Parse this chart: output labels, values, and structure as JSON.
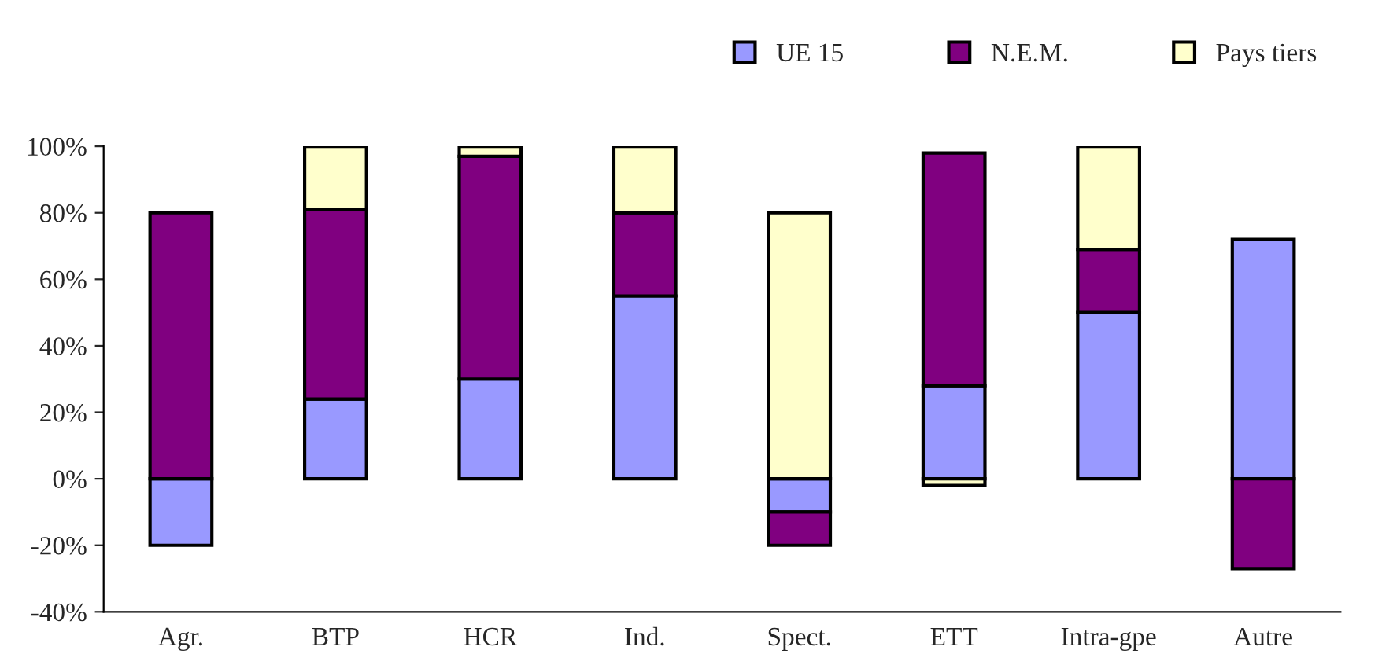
{
  "chart_data": {
    "type": "bar",
    "stacked": true,
    "categories": [
      "Agr.",
      "BTP",
      "HCR",
      "Ind.",
      "Spect.",
      "ETT",
      "Intra-gpe",
      "Autre"
    ],
    "series": [
      {
        "name": "UE 15",
        "color": "#9999ff",
        "values": [
          -20,
          24,
          30,
          55,
          -10,
          28,
          50,
          72
        ]
      },
      {
        "name": "N.E.M.",
        "color": "#800080",
        "values": [
          80,
          57,
          67,
          25,
          -10,
          70,
          19,
          -27
        ]
      },
      {
        "name": "Pays tiers",
        "color": "#ffffcc",
        "values": [
          0,
          19,
          3,
          20,
          80,
          -2,
          31,
          0
        ]
      }
    ],
    "ylim": [
      -40,
      100
    ],
    "yticks": [
      {
        "value": -40,
        "label": "-40%"
      },
      {
        "value": -20,
        "label": "-20%"
      },
      {
        "value": 0,
        "label": "0%"
      },
      {
        "value": 20,
        "label": "20%"
      },
      {
        "value": 40,
        "label": "40%"
      },
      {
        "value": 60,
        "label": "60%"
      },
      {
        "value": 80,
        "label": "80%"
      },
      {
        "value": 100,
        "label": "100%"
      }
    ],
    "grid": false,
    "legend": "top right"
  }
}
